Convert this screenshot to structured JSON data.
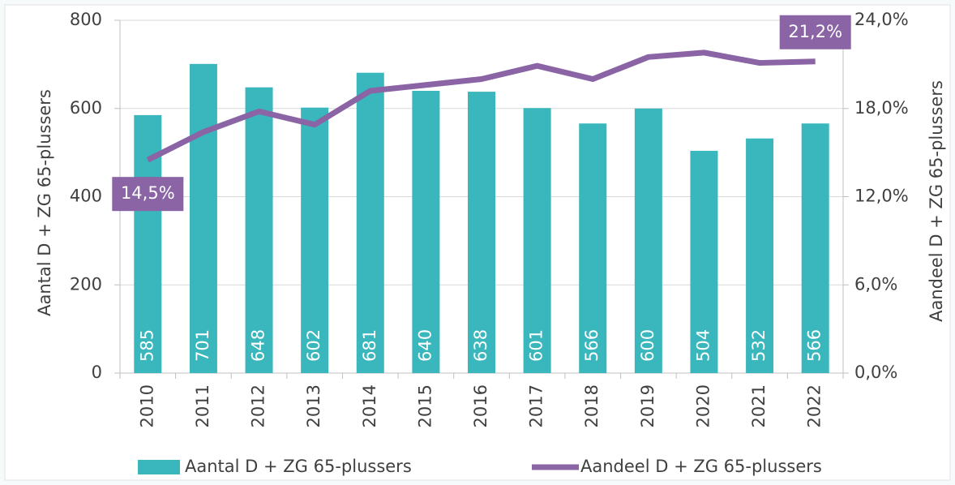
{
  "chart_data": {
    "type": "bar-line",
    "y_label": "Aantal D + ZG 65-plussers",
    "y2_label": "Aandeel D + ZG 65-plussers",
    "categories": [
      "2010",
      "2011",
      "2012",
      "2013",
      "2014",
      "2015",
      "2016",
      "2017",
      "2018",
      "2019",
      "2020",
      "2021",
      "2022"
    ],
    "series": [
      {
        "name": "Aantal D + ZG 65-plussers",
        "type": "bar",
        "color": "#3ab7bd",
        "values": [
          585,
          701,
          648,
          602,
          681,
          640,
          638,
          601,
          566,
          600,
          504,
          532,
          566
        ]
      },
      {
        "name": "Aandeel D + ZG 65-plussers",
        "type": "line",
        "axis": "y2",
        "color": "#8a64a4",
        "values": [
          14.5,
          16.4,
          17.8,
          16.9,
          19.2,
          19.6,
          20.0,
          20.9,
          20.0,
          21.5,
          21.8,
          21.1,
          21.2
        ],
        "value_labels": [
          "14,5%",
          null,
          null,
          null,
          null,
          null,
          null,
          null,
          null,
          null,
          null,
          null,
          "21,2%"
        ]
      }
    ],
    "ylim": [
      0,
      800
    ],
    "yticks": [
      0,
      200,
      400,
      600,
      800
    ],
    "y2lim": [
      0,
      24
    ],
    "y2ticks": [
      {
        "value": 0,
        "label": "0,0%"
      },
      {
        "value": 6,
        "label": "6,0%"
      },
      {
        "value": 12,
        "label": "12,0%"
      },
      {
        "value": 18,
        "label": "18,0%"
      },
      {
        "value": 24,
        "label": "24,0%"
      }
    ],
    "grid": true,
    "legend": "bottom"
  }
}
